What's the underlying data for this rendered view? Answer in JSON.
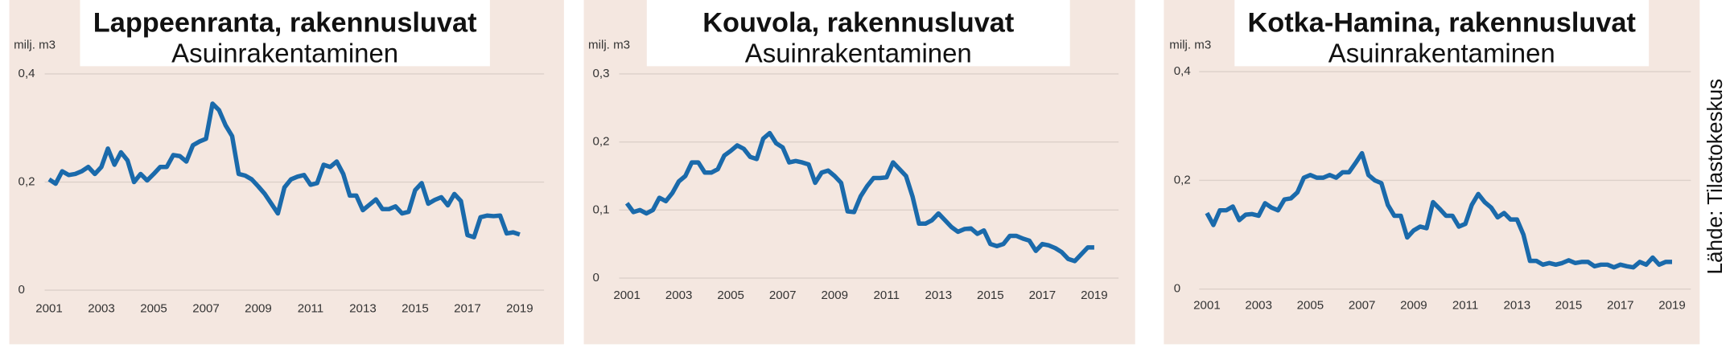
{
  "source": "Lähde: Tilastokeskus",
  "chart_data": [
    {
      "type": "line",
      "title": "Lappeenranta, rakennusluvat",
      "subtitle": "Asuinrakentaminen",
      "y_label": "milj. m3",
      "color": "#1a6aab",
      "grid": true,
      "x": [
        2001,
        2001.25,
        2001.5,
        2001.75,
        2002,
        2002.25,
        2002.5,
        2002.75,
        2003,
        2003.25,
        2003.5,
        2003.75,
        2004,
        2004.25,
        2004.5,
        2004.75,
        2005,
        2005.25,
        2005.5,
        2005.75,
        2006,
        2006.25,
        2006.5,
        2006.75,
        2007,
        2007.25,
        2007.5,
        2007.75,
        2008,
        2008.25,
        2008.5,
        2008.75,
        2009,
        2009.25,
        2009.5,
        2009.75,
        2010,
        2010.25,
        2010.5,
        2010.75,
        2011,
        2011.25,
        2011.5,
        2011.75,
        2012,
        2012.25,
        2012.5,
        2012.75,
        2013,
        2013.25,
        2013.5,
        2013.75,
        2014,
        2014.25,
        2014.5,
        2014.75,
        2015,
        2015.25,
        2015.5,
        2015.75,
        2016,
        2016.25,
        2016.5,
        2016.75,
        2017,
        2017.25,
        2017.5,
        2017.75,
        2018,
        2018.25,
        2018.5,
        2018.75,
        2019
      ],
      "values": [
        0.205,
        0.197,
        0.22,
        0.213,
        0.215,
        0.22,
        0.228,
        0.215,
        0.228,
        0.262,
        0.232,
        0.255,
        0.24,
        0.2,
        0.215,
        0.203,
        0.215,
        0.228,
        0.228,
        0.25,
        0.248,
        0.238,
        0.268,
        0.275,
        0.28,
        0.345,
        0.333,
        0.305,
        0.285,
        0.215,
        0.212,
        0.205,
        0.192,
        0.178,
        0.16,
        0.142,
        0.19,
        0.205,
        0.21,
        0.213,
        0.195,
        0.198,
        0.232,
        0.228,
        0.238,
        0.215,
        0.175,
        0.175,
        0.148,
        0.158,
        0.168,
        0.15,
        0.15,
        0.155,
        0.142,
        0.145,
        0.185,
        0.198,
        0.16,
        0.167,
        0.172,
        0.157,
        0.178,
        0.165,
        0.102,
        0.098,
        0.135,
        0.138,
        0.137,
        0.138,
        0.105,
        0.107,
        0.103
      ],
      "xlim": [
        2001,
        2019
      ],
      "xticks": [
        2001,
        2003,
        2005,
        2007,
        2009,
        2011,
        2013,
        2015,
        2017,
        2019
      ],
      "ylim": [
        0,
        0.4
      ],
      "yticks": [
        0,
        {
          "value": 0.2,
          "label": "0,2"
        },
        {
          "value": 0.4,
          "label": "0,4"
        }
      ]
    },
    {
      "type": "line",
      "title": "Kouvola, rakennusluvat",
      "subtitle": "Asuinrakentaminen",
      "y_label": "milj. m3",
      "color": "#1a6aab",
      "grid": true,
      "x": [
        2001,
        2001.25,
        2001.5,
        2001.75,
        2002,
        2002.25,
        2002.5,
        2002.75,
        2003,
        2003.25,
        2003.5,
        2003.75,
        2004,
        2004.25,
        2004.5,
        2004.75,
        2005,
        2005.25,
        2005.5,
        2005.75,
        2006,
        2006.25,
        2006.5,
        2006.75,
        2007,
        2007.25,
        2007.5,
        2007.75,
        2008,
        2008.25,
        2008.5,
        2008.75,
        2009,
        2009.25,
        2009.5,
        2009.75,
        2010,
        2010.25,
        2010.5,
        2010.75,
        2011,
        2011.25,
        2011.5,
        2011.75,
        2012,
        2012.25,
        2012.5,
        2012.75,
        2013,
        2013.25,
        2013.5,
        2013.75,
        2014,
        2014.25,
        2014.5,
        2014.75,
        2015,
        2015.25,
        2015.5,
        2015.75,
        2016,
        2016.25,
        2016.5,
        2016.75,
        2017,
        2017.25,
        2017.5,
        2017.75,
        2018,
        2018.25,
        2018.5,
        2018.75,
        2019
      ],
      "values": [
        0.11,
        0.097,
        0.1,
        0.095,
        0.1,
        0.118,
        0.113,
        0.125,
        0.142,
        0.15,
        0.17,
        0.17,
        0.155,
        0.155,
        0.16,
        0.18,
        0.187,
        0.195,
        0.19,
        0.178,
        0.175,
        0.205,
        0.213,
        0.198,
        0.192,
        0.17,
        0.172,
        0.17,
        0.167,
        0.14,
        0.155,
        0.158,
        0.15,
        0.14,
        0.098,
        0.097,
        0.12,
        0.135,
        0.147,
        0.147,
        0.148,
        0.17,
        0.16,
        0.15,
        0.12,
        0.08,
        0.08,
        0.085,
        0.095,
        0.085,
        0.075,
        0.068,
        0.072,
        0.073,
        0.065,
        0.07,
        0.05,
        0.047,
        0.05,
        0.062,
        0.062,
        0.058,
        0.055,
        0.04,
        0.05,
        0.048,
        0.044,
        0.038,
        0.028,
        0.025,
        0.035,
        0.045,
        0.045
      ],
      "xlim": [
        2001,
        2019
      ],
      "xticks": [
        2001,
        2003,
        2005,
        2007,
        2009,
        2011,
        2013,
        2015,
        2017,
        2019
      ],
      "ylim": [
        0,
        0.3
      ],
      "yticks": [
        0,
        {
          "value": 0.1,
          "label": "0,1"
        },
        {
          "value": 0.2,
          "label": "0,2"
        },
        {
          "value": 0.3,
          "label": "0,3"
        }
      ]
    },
    {
      "type": "line",
      "title": "Kotka-Hamina, rakennusluvat",
      "subtitle": "Asuinrakentaminen",
      "y_label": "milj. m3",
      "color": "#1a6aab",
      "grid": true,
      "x": [
        2001,
        2001.25,
        2001.5,
        2001.75,
        2002,
        2002.25,
        2002.5,
        2002.75,
        2003,
        2003.25,
        2003.5,
        2003.75,
        2004,
        2004.25,
        2004.5,
        2004.75,
        2005,
        2005.25,
        2005.5,
        2005.75,
        2006,
        2006.25,
        2006.5,
        2006.75,
        2007,
        2007.25,
        2007.5,
        2007.75,
        2008,
        2008.25,
        2008.5,
        2008.75,
        2009,
        2009.25,
        2009.5,
        2009.75,
        2010,
        2010.25,
        2010.5,
        2010.75,
        2011,
        2011.25,
        2011.5,
        2011.75,
        2012,
        2012.25,
        2012.5,
        2012.75,
        2013,
        2013.25,
        2013.5,
        2013.75,
        2014,
        2014.25,
        2014.5,
        2014.75,
        2015,
        2015.25,
        2015.5,
        2015.75,
        2016,
        2016.25,
        2016.5,
        2016.75,
        2017,
        2017.25,
        2017.5,
        2017.75,
        2018,
        2018.25,
        2018.5,
        2018.75,
        2019
      ],
      "values": [
        0.14,
        0.118,
        0.145,
        0.145,
        0.152,
        0.127,
        0.137,
        0.138,
        0.135,
        0.158,
        0.15,
        0.145,
        0.165,
        0.167,
        0.178,
        0.205,
        0.21,
        0.205,
        0.205,
        0.21,
        0.205,
        0.215,
        0.215,
        0.232,
        0.25,
        0.21,
        0.2,
        0.195,
        0.155,
        0.135,
        0.135,
        0.095,
        0.108,
        0.115,
        0.112,
        0.16,
        0.148,
        0.135,
        0.135,
        0.115,
        0.12,
        0.155,
        0.175,
        0.16,
        0.15,
        0.132,
        0.14,
        0.128,
        0.128,
        0.1,
        0.052,
        0.052,
        0.045,
        0.048,
        0.045,
        0.048,
        0.053,
        0.048,
        0.05,
        0.05,
        0.042,
        0.045,
        0.045,
        0.04,
        0.045,
        0.042,
        0.04,
        0.05,
        0.045,
        0.058,
        0.045,
        0.05,
        0.05
      ],
      "xlim": [
        2001,
        2019
      ],
      "xticks": [
        2001,
        2003,
        2005,
        2007,
        2009,
        2011,
        2013,
        2015,
        2017,
        2019
      ],
      "ylim": [
        0,
        0.4
      ],
      "yticks": [
        0,
        {
          "value": 0.2,
          "label": "0,2"
        },
        {
          "value": 0.4,
          "label": "0,4"
        }
      ]
    }
  ]
}
